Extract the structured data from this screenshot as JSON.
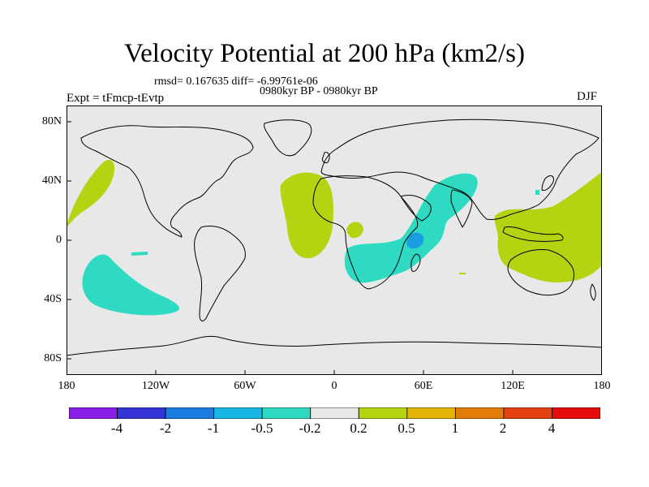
{
  "title": "Velocity Potential at 200 hPa (km2/s)",
  "stats": "rmsd= 0.167635 diff= -6.99761e-06",
  "period": "0980kyr BP - 0980kyr BP",
  "experiment": "Expt = tFmcp-tEvtp",
  "season": "DJF",
  "x_axis": {
    "ticks": [
      "180",
      "120W",
      "60W",
      "0",
      "60E",
      "120E",
      "180"
    ]
  },
  "y_axis": {
    "ticks": [
      "80N",
      "40N",
      "0",
      "40S",
      "80S"
    ]
  },
  "colorbar": {
    "labels": [
      "-4",
      "-2",
      "-1",
      "-0.5",
      "-0.2",
      "0.2",
      "0.5",
      "1",
      "2",
      "4"
    ],
    "colors": [
      "#8a1ee6",
      "#3434d6",
      "#1a7ce0",
      "#18b6e2",
      "#2edac2",
      "#e8e8e8",
      "#b4d412",
      "#e4b406",
      "#e47c0a",
      "#e44010",
      "#e40c0c"
    ]
  },
  "colors": {
    "ocean_background": "#e8e8e8",
    "positive_anomaly": "#b4d412",
    "negative_anomaly": "#2edac2",
    "strong_negative": "#1a9de2"
  }
}
